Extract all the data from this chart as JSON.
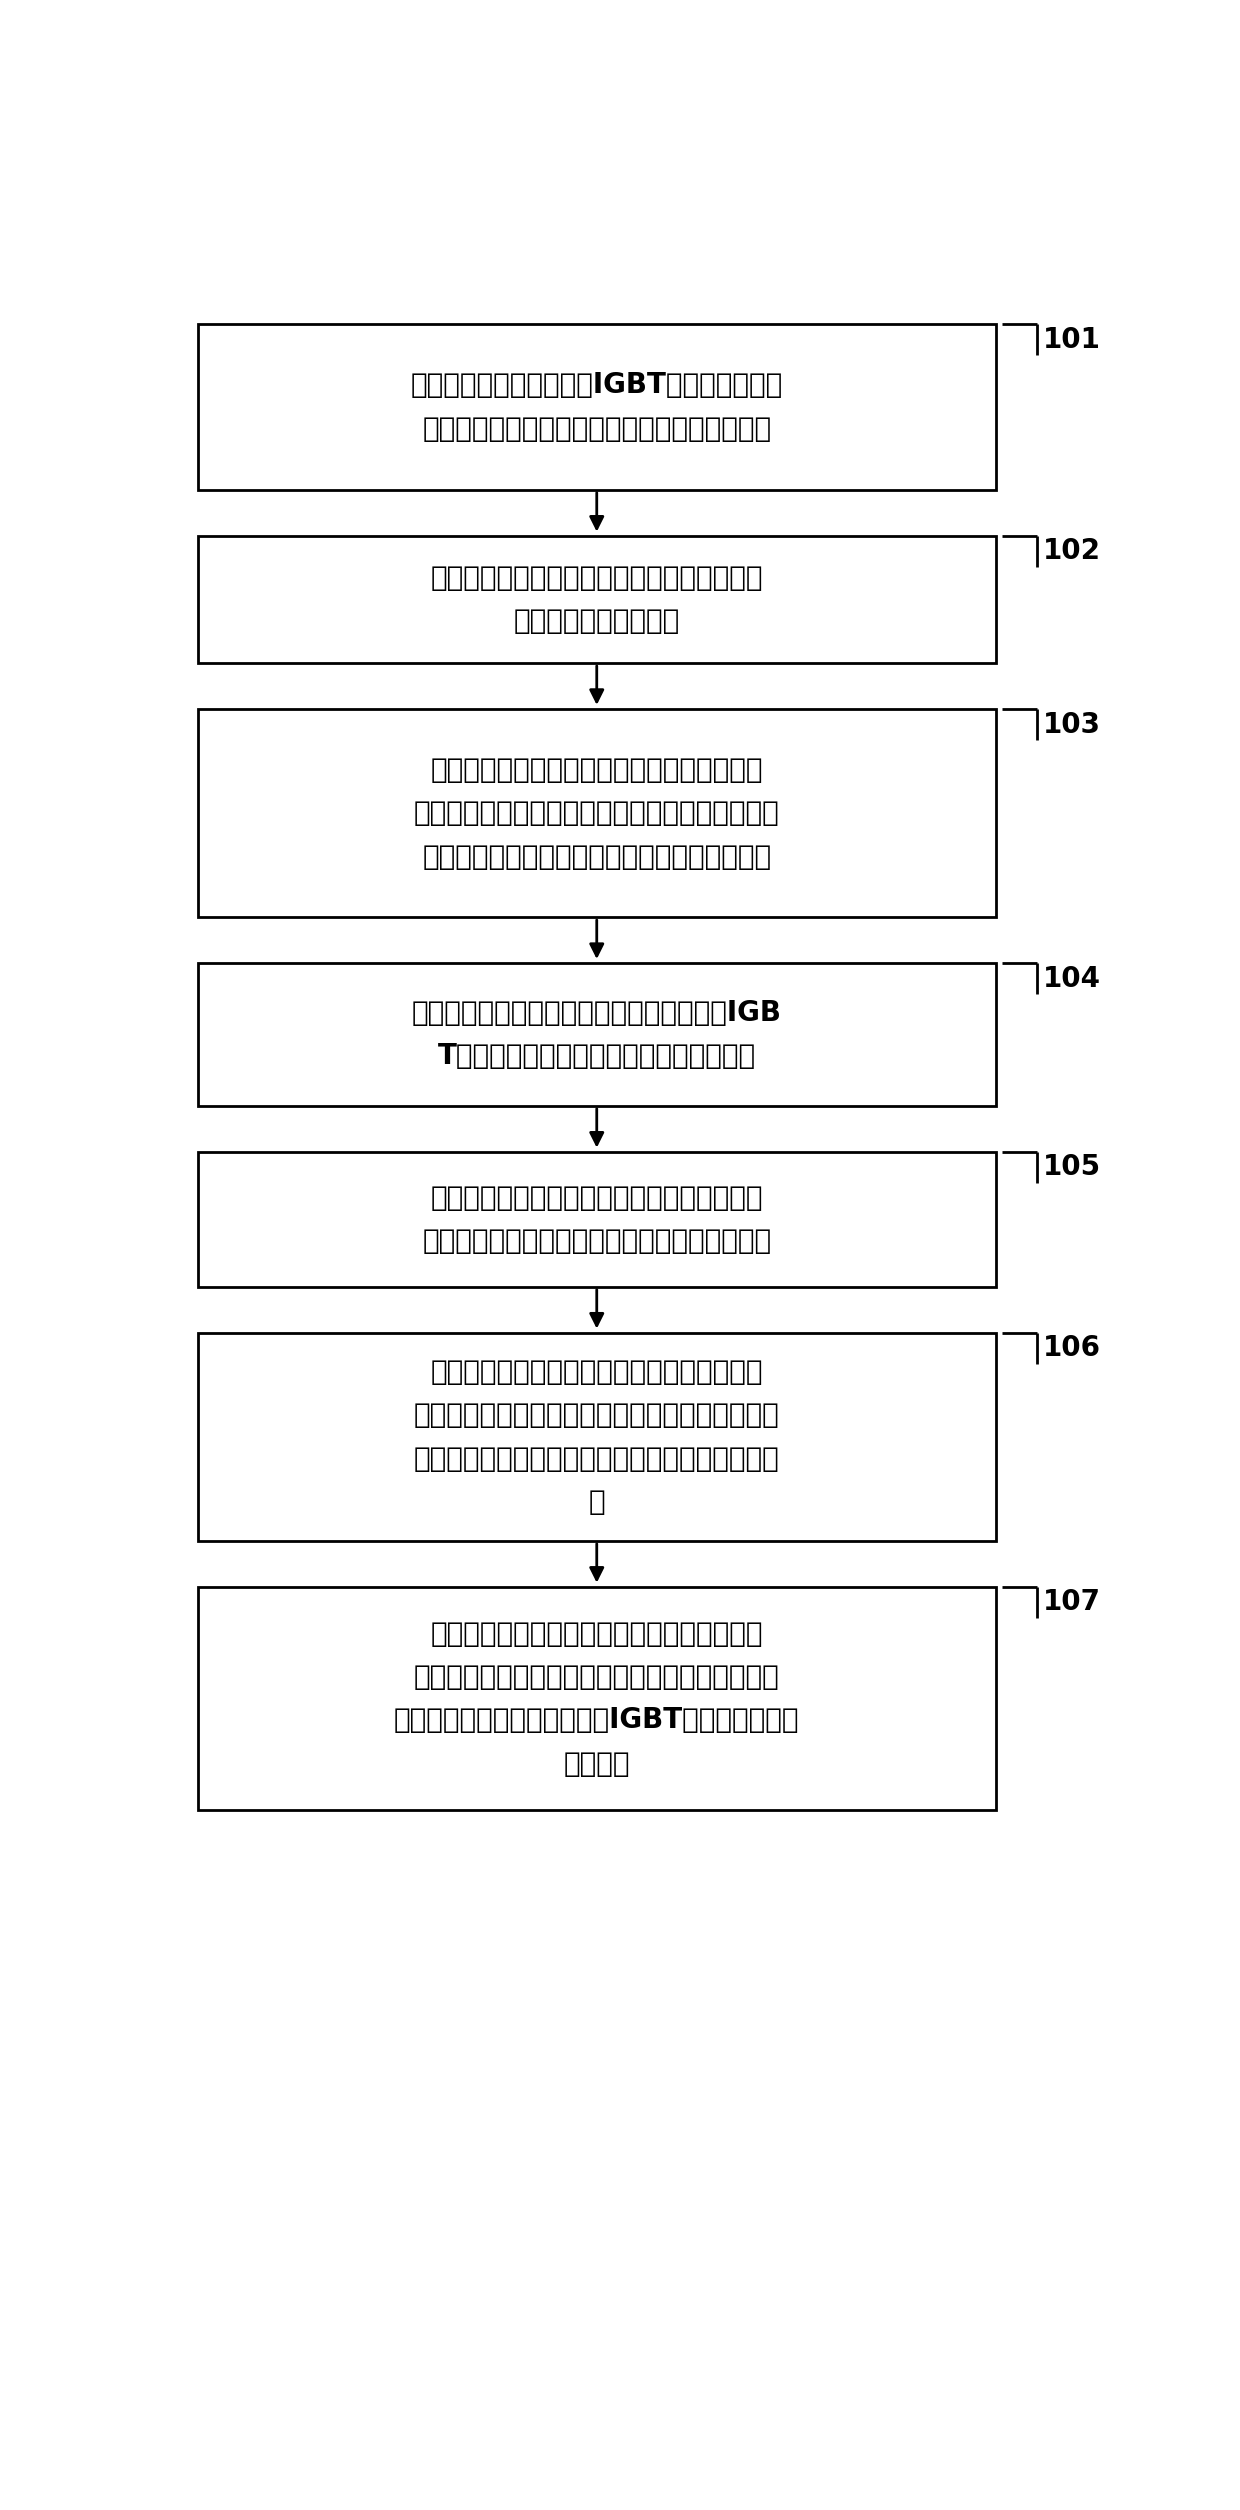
{
  "background_color": "#ffffff",
  "box_edge_color": "#000000",
  "box_fill_color": "#ffffff",
  "arrow_color": "#000000",
  "label_color": "#000000",
  "linewidth": 2.0,
  "font_size": 20,
  "label_font_size": 20,
  "boxes": [
    {
      "id": "101",
      "label": "通过主控单元设定压接式IGBT模块双脉冲平台\n的工作环境，工作环境包括：夹紧力和环境温度",
      "number": "101"
    },
    {
      "id": "102",
      "label": "通过主控单元接通校正回路单元，使得双脉冲\n回路单元处于校正模式",
      "number": "102"
    },
    {
      "id": "103",
      "label": "通过显示单元获取双脉冲回路单元输出的电压\n信号和电流信号的时间偏移误差，并将时间偏移误\n差存储于主控单元，使得主控单元进行偏差校正",
      "number": "103"
    },
    {
      "id": "104",
      "label": "通过主控单元断开校正回路单元，接通被测IGB\nT模块，使得双脉冲回路单元处于测试模式",
      "number": "104"
    },
    {
      "id": "105",
      "label": "通过主控单元调整压力控制单元输出的夹紧力\n和加热电路单元输出的环境温度达到测试设定值",
      "number": "105"
    },
    {
      "id": "106",
      "label": "在达到测试设定值之后，主控单元控制边沿触\n发电路单元输出触发脉冲信号给驱动电路单元，使\n得驱动电路单元输出双脉冲信号驱动双脉冲回路单\n元",
      "number": "106"
    },
    {
      "id": "107",
      "label": "通过显示单元采集并显示双脉冲回路单元输出\n的双脉冲测试信号，并将双脉冲测试信号发送至主\n控单元，使得主控单元对被测IGBT模块的动态特性\n进行分析",
      "number": "107"
    }
  ]
}
